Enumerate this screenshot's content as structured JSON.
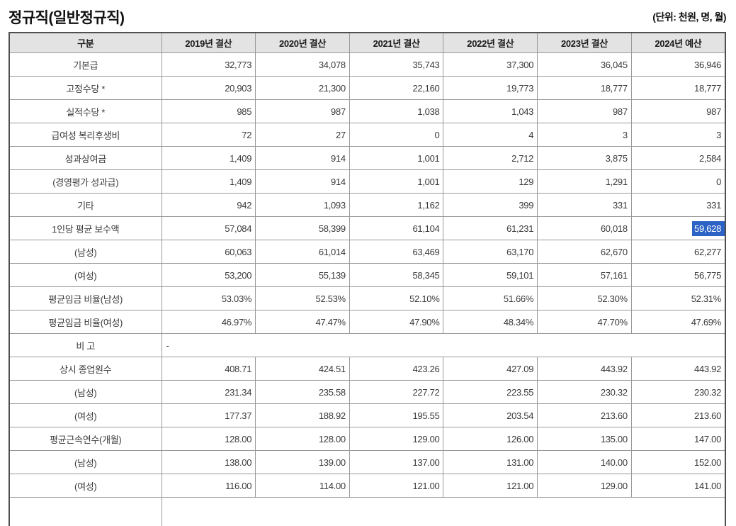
{
  "page": {
    "title": "정규직(일반정규직)",
    "unit_label": "(단위: 천원, 명, 월)"
  },
  "colors": {
    "header_bg": "#e3e3e3",
    "border_inner": "#999999",
    "border_outer": "#4f4f4f",
    "selection_bg": "#2d63c5",
    "selection_text": "#ffffff",
    "body_text": "#3a3a3a"
  },
  "table": {
    "columns": [
      "구분",
      "2019년 결산",
      "2020년 결산",
      "2021년 결산",
      "2022년 결산",
      "2023년 결산",
      "2024년 예산"
    ],
    "rows": [
      {
        "label": "기본급",
        "values": [
          "32,773",
          "34,078",
          "35,743",
          "37,300",
          "36,045",
          "36,946"
        ]
      },
      {
        "label": "고정수당 *",
        "values": [
          "20,903",
          "21,300",
          "22,160",
          "19,773",
          "18,777",
          "18,777"
        ]
      },
      {
        "label": "실적수당 *",
        "values": [
          "985",
          "987",
          "1,038",
          "1,043",
          "987",
          "987"
        ]
      },
      {
        "label": "급여성 복리후생비",
        "values": [
          "72",
          "27",
          "0",
          "4",
          "3",
          "3"
        ]
      },
      {
        "label": "성과상여금",
        "values": [
          "1,409",
          "914",
          "1,001",
          "2,712",
          "3,875",
          "2,584"
        ]
      },
      {
        "label": "(경영평가 성과급)",
        "values": [
          "1,409",
          "914",
          "1,001",
          "129",
          "1,291",
          "0"
        ]
      },
      {
        "label": "기타",
        "values": [
          "942",
          "1,093",
          "1,162",
          "399",
          "331",
          "331"
        ]
      },
      {
        "label": "1인당 평균 보수액",
        "values": [
          "57,084",
          "58,399",
          "61,104",
          "61,231",
          "60,018",
          "59,628"
        ],
        "highlight_col": 5
      },
      {
        "label": "(남성)",
        "values": [
          "60,063",
          "61,014",
          "63,469",
          "63,170",
          "62,670",
          "62,277"
        ]
      },
      {
        "label": "(여성)",
        "values": [
          "53,200",
          "55,139",
          "58,345",
          "59,101",
          "57,161",
          "56,775"
        ]
      },
      {
        "label": "평균임금 비율(남성)",
        "values": [
          "53.03%",
          "52.53%",
          "52.10%",
          "51.66%",
          "52.30%",
          "52.31%"
        ]
      },
      {
        "label": "평균임금 비율(여성)",
        "values": [
          "46.97%",
          "47.47%",
          "47.90%",
          "48.34%",
          "47.70%",
          "47.69%"
        ]
      },
      {
        "label": "비 고",
        "note": "-"
      },
      {
        "label": "상시 종업원수",
        "values": [
          "408.71",
          "424.51",
          "423.26",
          "427.09",
          "443.92",
          "443.92"
        ]
      },
      {
        "label": "(남성)",
        "values": [
          "231.34",
          "235.58",
          "227.72",
          "223.55",
          "230.32",
          "230.32"
        ]
      },
      {
        "label": "(여성)",
        "values": [
          "177.37",
          "188.92",
          "195.55",
          "203.54",
          "213.60",
          "213.60"
        ]
      },
      {
        "label": "평균근속연수(개월)",
        "values": [
          "128.00",
          "128.00",
          "129.00",
          "126.00",
          "135.00",
          "147.00"
        ]
      },
      {
        "label": "(남성)",
        "values": [
          "138.00",
          "139.00",
          "137.00",
          "131.00",
          "140.00",
          "152.00"
        ]
      },
      {
        "label": "(여성)",
        "values": [
          "116.00",
          "114.00",
          "121.00",
          "121.00",
          "129.00",
          "141.00"
        ]
      }
    ]
  }
}
